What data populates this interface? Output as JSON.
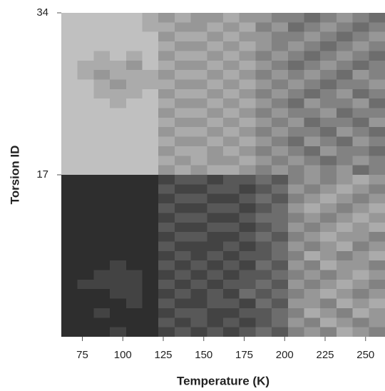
{
  "chart_data": {
    "type": "heatmap",
    "x_label": "Temperature (K)",
    "y_label": "Torsion ID",
    "bins": [
      62,
      72,
      82,
      92,
      102,
      112,
      122,
      132,
      142,
      152,
      162,
      172,
      182,
      192,
      202,
      212,
      222,
      232,
      242,
      252,
      262
    ],
    "y": [
      1,
      2,
      3,
      4,
      5,
      6,
      7,
      8,
      9,
      10,
      11,
      12,
      13,
      14,
      15,
      16,
      17,
      18,
      19,
      20,
      21,
      22,
      23,
      24,
      25,
      26,
      27,
      28,
      29,
      30,
      31,
      32,
      33,
      34
    ],
    "z": [
      [
        0,
        0,
        0,
        0.1,
        0,
        0,
        0.1,
        0.2,
        0.1,
        0.2,
        0.1,
        0.2,
        0.3,
        0.2,
        0.4,
        0.5,
        0.4,
        0.6,
        0.5,
        0.4
      ],
      [
        0,
        0,
        0,
        0,
        0,
        0,
        0.2,
        0.1,
        0.2,
        0.1,
        0.2,
        0.1,
        0.2,
        0.3,
        0.5,
        0.4,
        0.6,
        0.5,
        0.4,
        0.5
      ],
      [
        0,
        0,
        0.1,
        0,
        0,
        0,
        0.1,
        0.2,
        0.2,
        0.1,
        0.1,
        0.2,
        0.2,
        0.3,
        0.4,
        0.6,
        0.5,
        0.4,
        0.6,
        0.5
      ],
      [
        0,
        0,
        0,
        0,
        0.1,
        0,
        0.2,
        0.1,
        0.1,
        0.2,
        0.2,
        0.1,
        0.3,
        0.2,
        0.5,
        0.5,
        0.4,
        0.6,
        0.5,
        0.6
      ],
      [
        0,
        0,
        0,
        0.1,
        0.1,
        0,
        0.1,
        0.2,
        0.1,
        0.2,
        0.1,
        0.3,
        0.2,
        0.3,
        0.4,
        0.5,
        0.6,
        0.5,
        0.4,
        0.5
      ],
      [
        0,
        0.1,
        0.1,
        0.1,
        0.1,
        0,
        0.2,
        0.1,
        0.2,
        0.1,
        0.2,
        0.2,
        0.3,
        0.2,
        0.5,
        0.4,
        0.5,
        0.6,
        0.5,
        0.4
      ],
      [
        0,
        0,
        0.1,
        0.1,
        0.1,
        0,
        0.1,
        0.2,
        0.1,
        0.2,
        0.1,
        0.2,
        0.2,
        0.3,
        0.4,
        0.5,
        0.4,
        0.5,
        0.6,
        0.5
      ],
      [
        0,
        0,
        0,
        0.1,
        0,
        0,
        0.2,
        0.1,
        0.2,
        0.1,
        0.2,
        0.1,
        0.3,
        0.2,
        0.5,
        0.4,
        0.6,
        0.5,
        0.5,
        0.4
      ],
      [
        0,
        0,
        0,
        0,
        0,
        0,
        0.1,
        0.2,
        0.1,
        0.2,
        0.1,
        0.2,
        0.2,
        0.3,
        0.4,
        0.6,
        0.5,
        0.4,
        0.5,
        0.6
      ],
      [
        0,
        0,
        0,
        0,
        0,
        0,
        0.2,
        0.1,
        0.1,
        0.1,
        0.2,
        0.1,
        0.2,
        0.3,
        0.5,
        0.4,
        0.5,
        0.6,
        0.4,
        0.5
      ],
      [
        0,
        0,
        0,
        0,
        0,
        0,
        0.1,
        0.2,
        0.2,
        0.1,
        0.1,
        0.2,
        0.3,
        0.2,
        0.4,
        0.5,
        0.6,
        0.5,
        0.5,
        0.4
      ],
      [
        0,
        0,
        0,
        0,
        0,
        0,
        0.2,
        0.1,
        0.1,
        0.2,
        0.2,
        0.1,
        0.2,
        0.3,
        0.5,
        0.4,
        0.5,
        0.6,
        0.5,
        0.6
      ],
      [
        0,
        0,
        0,
        0,
        0,
        0,
        0.1,
        0.2,
        0.2,
        0.1,
        0.1,
        0.2,
        0.3,
        0.3,
        0.4,
        0.5,
        0.4,
        0.5,
        0.6,
        0.5
      ],
      [
        0,
        0,
        0,
        0,
        0,
        0,
        0.2,
        0.1,
        0.1,
        0.2,
        0.2,
        0.1,
        0.2,
        0.3,
        0.5,
        0.6,
        0.5,
        0.4,
        0.5,
        0.6
      ],
      [
        0,
        0,
        0,
        0,
        0,
        0,
        0.1,
        0.2,
        0.2,
        0.1,
        0.1,
        0.2,
        0.3,
        0.2,
        0.4,
        0.5,
        0.6,
        0.5,
        0.4,
        0.5
      ],
      [
        0,
        0,
        0,
        0,
        0,
        0,
        0.2,
        0.1,
        0.1,
        0.2,
        0.2,
        0.1,
        0.2,
        0.3,
        0.5,
        0.4,
        0.5,
        0.6,
        0.5,
        0.4
      ],
      [
        0,
        0,
        0,
        0,
        0,
        0,
        0.1,
        0.2,
        0.2,
        0.1,
        0.2,
        0.2,
        0.3,
        0.2,
        0.4,
        0.5,
        0.4,
        0.5,
        0.6,
        0.5
      ],
      [
        0.7,
        0.7,
        0.7,
        0.7,
        0.7,
        0.7,
        0.5,
        0.6,
        0.5,
        0.6,
        0.6,
        0.5,
        0.4,
        0.5,
        0.4,
        0.5,
        0.4,
        0.5,
        0.3,
        0.4
      ],
      [
        0.7,
        0.7,
        0.7,
        0.7,
        0.7,
        0.7,
        0.6,
        0.5,
        0.6,
        0.5,
        0.5,
        0.6,
        0.5,
        0.4,
        0.5,
        0.4,
        0.3,
        0.4,
        0.5,
        0.4
      ],
      [
        0.7,
        0.7,
        0.7,
        0.7,
        0.7,
        0.7,
        0.5,
        0.6,
        0.6,
        0.5,
        0.6,
        0.5,
        0.4,
        0.5,
        0.4,
        0.3,
        0.5,
        0.4,
        0.4,
        0.3
      ],
      [
        0.7,
        0.7,
        0.7,
        0.7,
        0.7,
        0.7,
        0.6,
        0.5,
        0.5,
        0.6,
        0.5,
        0.6,
        0.5,
        0.4,
        0.3,
        0.5,
        0.4,
        0.3,
        0.5,
        0.4
      ],
      [
        0.7,
        0.7,
        0.7,
        0.7,
        0.7,
        0.7,
        0.5,
        0.6,
        0.6,
        0.5,
        0.6,
        0.5,
        0.4,
        0.5,
        0.4,
        0.4,
        0.3,
        0.5,
        0.4,
        0.3
      ],
      [
        0.7,
        0.7,
        0.7,
        0.7,
        0.7,
        0.7,
        0.6,
        0.5,
        0.5,
        0.6,
        0.5,
        0.6,
        0.5,
        0.4,
        0.5,
        0.3,
        0.4,
        0.4,
        0.3,
        0.5
      ],
      [
        0.7,
        0.7,
        0.7,
        0.7,
        0.7,
        0.7,
        0.5,
        0.6,
        0.6,
        0.5,
        0.6,
        0.5,
        0.4,
        0.5,
        0.4,
        0.4,
        0.5,
        0.3,
        0.4,
        0.4
      ],
      [
        0.7,
        0.7,
        0.7,
        0.6,
        0.7,
        0.7,
        0.6,
        0.5,
        0.5,
        0.6,
        0.5,
        0.6,
        0.5,
        0.4,
        0.3,
        0.5,
        0.4,
        0.4,
        0.5,
        0.3
      ],
      [
        0.7,
        0.7,
        0.6,
        0.6,
        0.6,
        0.7,
        0.5,
        0.6,
        0.6,
        0.5,
        0.6,
        0.5,
        0.4,
        0.5,
        0.4,
        0.3,
        0.4,
        0.5,
        0.3,
        0.4
      ],
      [
        0.7,
        0.7,
        0.6,
        0.5,
        0.6,
        0.6,
        0.6,
        0.5,
        0.5,
        0.6,
        0.5,
        0.6,
        0.5,
        0.4,
        0.5,
        0.4,
        0.3,
        0.4,
        0.4,
        0.5
      ],
      [
        0.7,
        0.6,
        0.5,
        0.6,
        0.6,
        0.6,
        0.5,
        0.6,
        0.6,
        0.5,
        0.6,
        0.5,
        0.4,
        0.5,
        0.4,
        0.5,
        0.4,
        0.3,
        0.5,
        0.4
      ],
      [
        0.7,
        0.6,
        0.6,
        0.6,
        0.5,
        0.7,
        0.6,
        0.5,
        0.5,
        0.6,
        0.5,
        0.6,
        0.5,
        0.4,
        0.3,
        0.4,
        0.5,
        0.4,
        0.3,
        0.4
      ],
      [
        0.7,
        0.7,
        0.6,
        0.7,
        0.6,
        0.7,
        0.5,
        0.6,
        0.6,
        0.5,
        0.6,
        0.5,
        0.4,
        0.5,
        0.4,
        0.3,
        0.4,
        0.5,
        0.4,
        0.3
      ],
      [
        0.7,
        0.7,
        0.7,
        0.7,
        0.7,
        0.7,
        0.6,
        0.5,
        0.5,
        0.6,
        0.5,
        0.6,
        0.5,
        0.4,
        0.5,
        0.4,
        0.3,
        0.4,
        0.5,
        0.4
      ],
      [
        0.7,
        0.7,
        0.7,
        0.7,
        0.7,
        0.7,
        0.5,
        0.6,
        0.6,
        0.5,
        0.6,
        0.5,
        0.5,
        0.4,
        0.4,
        0.5,
        0.4,
        0.3,
        0.4,
        0.5
      ],
      [
        0.7,
        0.7,
        0.7,
        0.7,
        0.7,
        0.6,
        0.6,
        0.5,
        0.5,
        0.6,
        0.5,
        0.6,
        0.4,
        0.5,
        0.3,
        0.4,
        0.5,
        0.4,
        0.3,
        0.4
      ],
      [
        0.7,
        0.7,
        0.7,
        0.7,
        0.7,
        0.6,
        0.5,
        0.6,
        0.5,
        0.5,
        0.6,
        0.5,
        0.5,
        0.4,
        0.4,
        0.3,
        0.4,
        0.5,
        0.4,
        0.3
      ]
    ],
    "zlim": [
      0,
      1
    ],
    "colors": [
      "#2e2e2e",
      "#ffffff"
    ],
    "xlim": [
      62,
      262
    ],
    "xticks": [
      75,
      100,
      125,
      150,
      175,
      200,
      225,
      250
    ],
    "ylim": [
      0,
      34
    ],
    "yticks": [
      17,
      34
    ],
    "grid": false
  }
}
